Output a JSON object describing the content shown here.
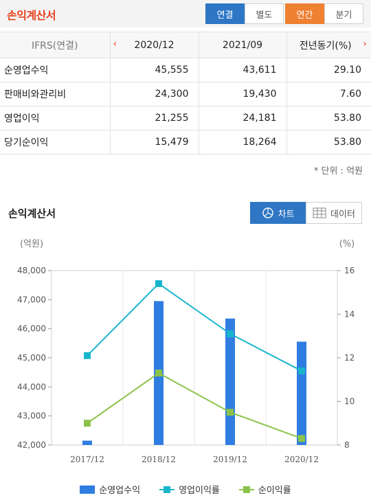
{
  "header": {
    "title": "손익계산서",
    "tabs_scope": [
      "연결",
      "별도"
    ],
    "tabs_period": [
      "연간",
      "분기"
    ]
  },
  "table": {
    "header_label": "IFRS(연결)",
    "columns": [
      "2020/12",
      "2021/09",
      "전년동기(%)"
    ],
    "rows": [
      {
        "label": "순영업수익",
        "values": [
          "45,555",
          "43,611",
          "29.10"
        ]
      },
      {
        "label": "판매비와관리비",
        "values": [
          "24,300",
          "19,430",
          "7.60"
        ]
      },
      {
        "label": "영업이익",
        "values": [
          "21,255",
          "24,181",
          "53.80"
        ]
      },
      {
        "label": "당기순이익",
        "values": [
          "15,479",
          "18,264",
          "53.80"
        ]
      }
    ],
    "unit_note": "* 단위 : 억원"
  },
  "chart_section": {
    "title": "손익계산서",
    "view_chart": "차트",
    "view_data": "데이터"
  },
  "chart_data": {
    "type": "bar",
    "categories": [
      "2017/12",
      "2018/12",
      "2019/12",
      "2020/12"
    ],
    "left_axis_label": "(억원)",
    "right_axis_label": "(%)",
    "ylim_left": [
      42000,
      48000
    ],
    "ylim_right": [
      8,
      16
    ],
    "left_ticks": [
      "48,000",
      "47,000",
      "46,000",
      "45,000",
      "44,000",
      "43,000",
      "42,000"
    ],
    "right_ticks": [
      "16",
      "14",
      "12",
      "10",
      "8"
    ],
    "grid": true,
    "series": [
      {
        "name": "순영업수익",
        "kind": "bar",
        "axis": "left",
        "color": "#2f7de1",
        "values": [
          42150,
          46950,
          46350,
          45555
        ]
      },
      {
        "name": "영업이익률",
        "kind": "line",
        "axis": "right",
        "color": "#19b5cc",
        "values": [
          12.1,
          15.4,
          13.1,
          11.4
        ]
      },
      {
        "name": "순이익률",
        "kind": "line",
        "axis": "right",
        "color": "#8bc34a",
        "values": [
          9.0,
          11.3,
          9.5,
          8.3
        ]
      }
    ]
  }
}
